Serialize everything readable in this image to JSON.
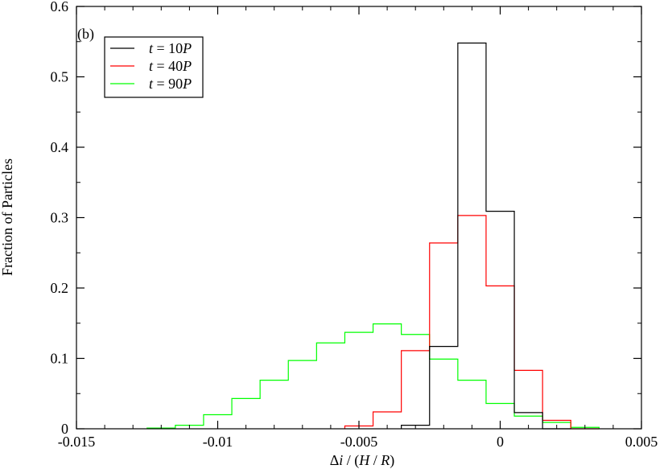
{
  "chart_data": {
    "type": "step-histogram",
    "panel_label": "(b)",
    "xlabel_parts": {
      "a": "Δ",
      "b": "i",
      "c": " / (",
      "d": "H",
      "e": " / ",
      "f": "R",
      "g": ")"
    },
    "ylabel": "Fraction of Particles",
    "xlim": [
      -0.015,
      0.005
    ],
    "ylim": [
      0,
      0.6
    ],
    "x_ticks": [
      -0.015,
      -0.01,
      -0.005,
      0,
      0.005
    ],
    "x_tick_labels": [
      "-0.015",
      "-0.01",
      "-0.005",
      "0",
      "0.005"
    ],
    "y_ticks": [
      0,
      0.1,
      0.2,
      0.3,
      0.4,
      0.5,
      0.6
    ],
    "y_tick_labels": [
      "0",
      "0.1",
      "0.2",
      "0.3",
      "0.4",
      "0.5",
      "0.6"
    ],
    "x_minor_step": 0.001,
    "y_minor_step": 0.05,
    "grid": false,
    "legend_position": "top-left",
    "series": [
      {
        "legend": {
          "t": "t",
          "eq": " = 10",
          "p": "P"
        },
        "color": "#000000",
        "edges": [
          -0.0035,
          -0.0025,
          -0.0015,
          -0.0005,
          0.0005,
          0.0015,
          0.0025
        ],
        "values": [
          0.005,
          0.117,
          0.548,
          0.309,
          0.023,
          0.0
        ]
      },
      {
        "legend": {
          "t": "t",
          "eq": " = 40",
          "p": "P"
        },
        "color": "#ff0000",
        "edges": [
          -0.0055,
          -0.0045,
          -0.0035,
          -0.0025,
          -0.0015,
          -0.0005,
          0.0005,
          0.0015,
          0.0025,
          0.0035
        ],
        "values": [
          0.004,
          0.024,
          0.111,
          0.264,
          0.303,
          0.203,
          0.083,
          0.012,
          0.0
        ]
      },
      {
        "legend": {
          "t": "t",
          "eq": " = 90",
          "p": "P"
        },
        "color": "#00ff00",
        "edges": [
          -0.0125,
          -0.0115,
          -0.0105,
          -0.0095,
          -0.0085,
          -0.0075,
          -0.0065,
          -0.0055,
          -0.0045,
          -0.0035,
          -0.0025,
          -0.0015,
          -0.0005,
          0.0005,
          0.0015,
          0.0025,
          0.0035
        ],
        "values": [
          0.001,
          0.005,
          0.02,
          0.043,
          0.069,
          0.097,
          0.122,
          0.137,
          0.149,
          0.134,
          0.099,
          0.069,
          0.036,
          0.018,
          0.009,
          0.002
        ]
      }
    ]
  }
}
